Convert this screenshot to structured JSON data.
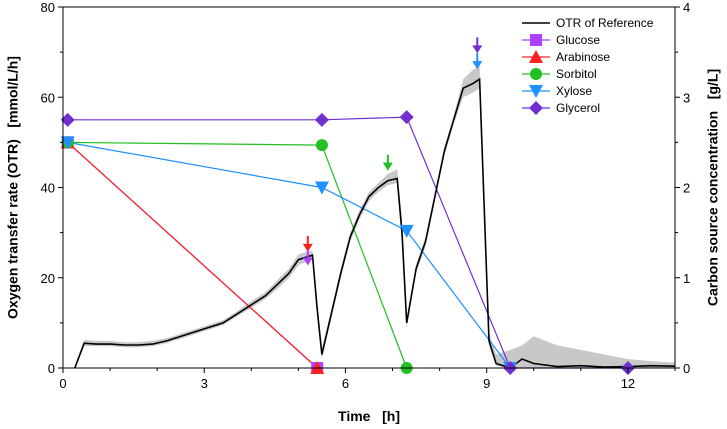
{
  "chart_data": {
    "type": "line",
    "xlabel": "Time   [h]",
    "ylabel_left": "Oxygen transfer rate (OTR)   [mmol/L/h]",
    "ylabel_right": "Carbon source concentration   [g/L]",
    "xlim": [
      0,
      13
    ],
    "ylim_left": [
      0,
      80
    ],
    "ylim_right": [
      0,
      4
    ],
    "xticks": [
      0,
      3,
      6,
      9,
      12
    ],
    "yticks_left": [
      0,
      20,
      40,
      60,
      80
    ],
    "yticks_right": [
      0,
      1,
      2,
      3,
      4
    ],
    "legend_position": "top-right",
    "otr_reference": {
      "name": "OTR of Reference",
      "color": "#000000",
      "band_color": "#c8c8c8",
      "x": [
        0.25,
        0.45,
        0.7,
        1.0,
        1.3,
        1.6,
        1.9,
        2.2,
        2.5,
        2.8,
        3.1,
        3.4,
        3.7,
        4.0,
        4.3,
        4.6,
        4.8,
        5.0,
        5.15,
        5.3,
        5.4,
        5.5,
        5.7,
        5.9,
        6.1,
        6.3,
        6.5,
        6.7,
        6.9,
        7.1,
        7.2,
        7.3,
        7.5,
        7.7,
        7.9,
        8.1,
        8.3,
        8.5,
        8.7,
        8.85,
        8.95,
        9.05,
        9.2,
        9.5,
        9.75,
        10.0,
        10.5,
        11.0,
        11.5,
        12.0,
        12.5,
        13.0
      ],
      "y": [
        0,
        5.5,
        5.3,
        5.3,
        5.1,
        5.1,
        5.3,
        6,
        7,
        8,
        9,
        10,
        12,
        14,
        16,
        19,
        21,
        24,
        24.5,
        25,
        13,
        3,
        12,
        21,
        29,
        34,
        38,
        40,
        41.5,
        42,
        30,
        10,
        22,
        28,
        38,
        48,
        55,
        62,
        63,
        64,
        35,
        6,
        1,
        0,
        2,
        1,
        0.3,
        0.5,
        0.2,
        0.3,
        0.5,
        0.4
      ],
      "band_low": [
        0,
        4.9,
        4.8,
        4.8,
        4.6,
        4.6,
        4.8,
        5.5,
        6.5,
        7.5,
        8.5,
        9.5,
        11.5,
        13.3,
        15.3,
        18,
        20,
        22.8,
        23.5,
        24,
        11,
        2,
        11,
        20,
        28,
        33,
        37,
        39,
        40.5,
        41,
        27,
        9,
        21,
        27,
        37,
        47,
        54,
        60,
        61,
        62,
        33,
        5,
        0.5,
        0,
        0,
        0,
        0,
        0,
        0,
        0,
        0,
        0
      ],
      "band_high": [
        0.5,
        6.2,
        6,
        6,
        5.7,
        5.7,
        6,
        6.6,
        7.6,
        8.6,
        9.6,
        10.6,
        12.6,
        14.8,
        16.8,
        20,
        22,
        25.2,
        25.6,
        26,
        15,
        4.5,
        13,
        22,
        30,
        35,
        39,
        41,
        43,
        44,
        33,
        11,
        23,
        29,
        39,
        49,
        56,
        64,
        66,
        67,
        37,
        8,
        3,
        4,
        5,
        7,
        5,
        4,
        3,
        2,
        1.5,
        1.2
      ]
    },
    "series": [
      {
        "name": "Glucose",
        "color": "#b040ff",
        "marker": "square",
        "x": [
          0.1,
          5.4
        ],
        "y": [
          2.5,
          0
        ]
      },
      {
        "name": "Arabinose",
        "color": "#ff2020",
        "marker": "triangle-up",
        "x": [
          0.1,
          5.4
        ],
        "y": [
          2.5,
          0
        ]
      },
      {
        "name": "Sorbitol",
        "color": "#22c022",
        "marker": "circle",
        "x": [
          0.1,
          5.5,
          7.3
        ],
        "y": [
          2.5,
          2.47,
          0
        ]
      },
      {
        "name": "Xylose",
        "color": "#2090ff",
        "marker": "triangle-down",
        "x": [
          0.1,
          5.5,
          7.3,
          9.5
        ],
        "y": [
          2.5,
          2.0,
          1.52,
          0
        ]
      },
      {
        "name": "Glycerol",
        "color": "#7030d0",
        "marker": "diamond",
        "x": [
          0.1,
          5.5,
          7.3,
          9.5,
          12.0
        ],
        "y": [
          2.75,
          2.75,
          2.78,
          0,
          0
        ]
      }
    ],
    "annotations": [
      {
        "series": "Arabinose",
        "color": "#ff2020",
        "x": 5.2,
        "y": 27.5
      },
      {
        "series": "Glucose",
        "color": "#b040ff",
        "x": 5.2,
        "y": 24.5
      },
      {
        "series": "Sorbitol",
        "color": "#22c022",
        "x": 6.9,
        "y": 45.5
      },
      {
        "series": "Glycerol",
        "color": "#7030d0",
        "x": 8.8,
        "y": 71.5
      },
      {
        "series": "Xylose",
        "color": "#2090ff",
        "x": 8.8,
        "y": 68
      }
    ]
  }
}
